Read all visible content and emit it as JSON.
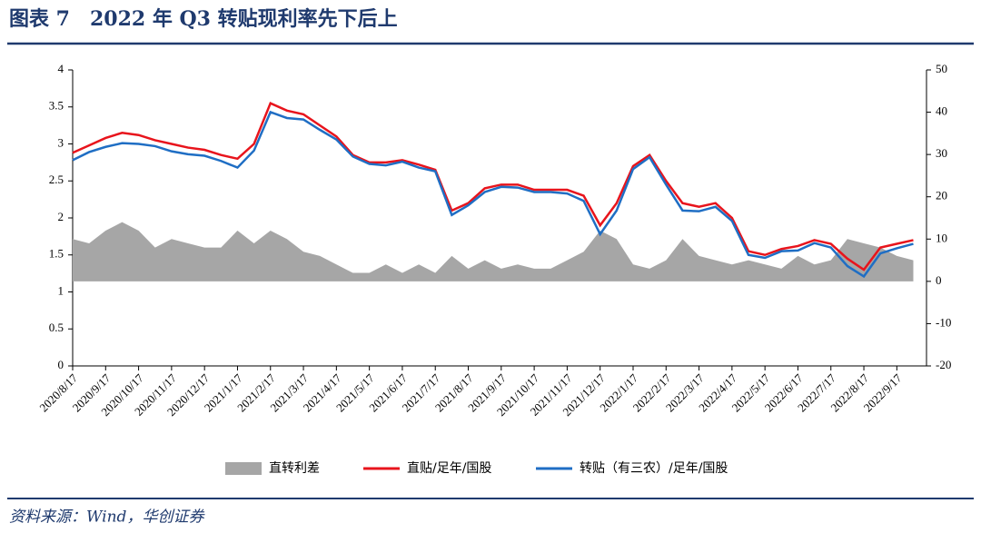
{
  "chart_data": {
    "type": "line",
    "title": "图表 7　2022 年 Q3 转贴现利率先下后上",
    "source": "资料来源：Wind，华创证券",
    "categories": [
      "2020/8/17",
      null,
      "2020/9/17",
      null,
      "2020/10/17",
      null,
      "2020/11/17",
      null,
      "2020/12/17",
      null,
      "2021/1/17",
      null,
      "2021/2/17",
      null,
      "2021/3/17",
      null,
      "2021/4/17",
      null,
      "2021/5/17",
      null,
      "2021/6/17",
      null,
      "2021/7/17",
      null,
      "2021/8/17",
      null,
      "2021/9/17",
      null,
      "2021/10/17",
      null,
      "2021/11/17",
      null,
      "2021/12/17",
      null,
      "2022/1/17",
      null,
      "2022/2/17",
      null,
      "2022/3/17",
      null,
      "2022/4/17",
      null,
      "2022/5/17",
      null,
      "2022/6/17",
      null,
      "2022/7/17",
      null,
      "2022/8/17",
      null,
      "2022/9/17",
      null
    ],
    "series": [
      {
        "name": "直转利差",
        "type": "area",
        "axis": "y2",
        "color": "#a6a6a6",
        "values": [
          10,
          9,
          12,
          14,
          12,
          8,
          10,
          9,
          8,
          8,
          12,
          9,
          12,
          10,
          7,
          6,
          4,
          2,
          2,
          4,
          2,
          4,
          2,
          6,
          3,
          5,
          3,
          4,
          3,
          3,
          5,
          7,
          12,
          10,
          4,
          3,
          5,
          10,
          6,
          5,
          4,
          5,
          4,
          3,
          6,
          4,
          5,
          10,
          9,
          8,
          6,
          5
        ]
      },
      {
        "name": "直贴/足年/国股",
        "type": "line",
        "color": "#e8141c",
        "values": [
          2.88,
          2.98,
          3.08,
          3.15,
          3.12,
          3.05,
          3.0,
          2.95,
          2.92,
          2.85,
          2.8,
          3.0,
          3.55,
          3.45,
          3.4,
          3.25,
          3.1,
          2.85,
          2.75,
          2.75,
          2.78,
          2.72,
          2.65,
          2.1,
          2.2,
          2.4,
          2.45,
          2.45,
          2.38,
          2.38,
          2.38,
          2.3,
          1.9,
          2.2,
          2.7,
          2.85,
          2.5,
          2.2,
          2.15,
          2.2,
          2.0,
          1.55,
          1.5,
          1.58,
          1.62,
          1.7,
          1.65,
          1.45,
          1.3,
          1.6,
          1.65,
          1.7
        ]
      },
      {
        "name": "转贴（有三农）/足年/国股",
        "type": "line",
        "color": "#1f6ec4",
        "values": [
          2.78,
          2.89,
          2.96,
          3.01,
          3.0,
          2.97,
          2.9,
          2.86,
          2.84,
          2.77,
          2.68,
          2.91,
          3.43,
          3.35,
          3.33,
          3.19,
          3.06,
          2.83,
          2.73,
          2.71,
          2.76,
          2.68,
          2.63,
          2.04,
          2.17,
          2.35,
          2.42,
          2.41,
          2.35,
          2.35,
          2.33,
          2.23,
          1.78,
          2.1,
          2.66,
          2.82,
          2.45,
          2.1,
          2.09,
          2.15,
          1.96,
          1.5,
          1.46,
          1.55,
          1.56,
          1.66,
          1.6,
          1.35,
          1.21,
          1.52,
          1.59,
          1.65
        ]
      }
    ],
    "ylim": [
      0,
      4
    ],
    "yticks": [
      0,
      0.5,
      1,
      1.5,
      2,
      2.5,
      3,
      3.5,
      4
    ],
    "y2lim": [
      -20,
      50
    ],
    "y2ticks": [
      -20,
      -10,
      0,
      10,
      20,
      30,
      40,
      50
    ],
    "legend": "bottom"
  }
}
